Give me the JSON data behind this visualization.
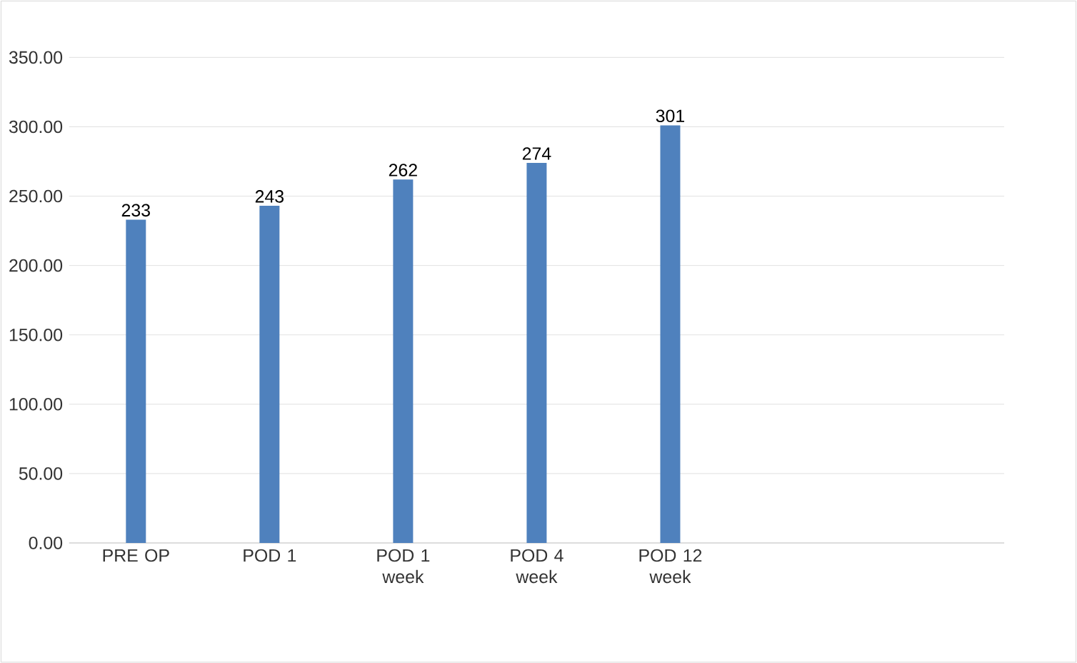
{
  "chart_data": {
    "type": "bar",
    "categories": [
      "PRE OP",
      "POD 1",
      "POD  1 week",
      "POD 4 week",
      "POD 12 week",
      null,
      null
    ],
    "values": [
      233,
      243,
      262,
      274,
      301,
      null,
      null
    ],
    "color": "#4f81bd",
    "ylim": [
      0,
      350
    ],
    "yticks": [
      {
        "value": 0,
        "label": "0.00"
      },
      {
        "value": 50,
        "label": "50.00"
      },
      {
        "value": 100,
        "label": "100.00"
      },
      {
        "value": 150,
        "label": "150.00"
      },
      {
        "value": 200,
        "label": "200.00"
      },
      {
        "value": 250,
        "label": "250.00"
      },
      {
        "value": 300,
        "label": "300.00"
      },
      {
        "value": 350,
        "label": "350.00"
      }
    ],
    "grid": "y",
    "data_labels": true
  }
}
